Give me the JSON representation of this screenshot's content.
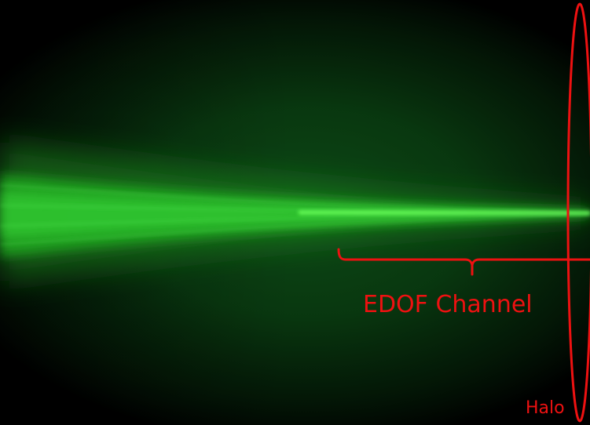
{
  "image": {
    "background_color": "#000000",
    "glow_color": "#2ad62a",
    "haze_color": "#0a3a12",
    "annotation_color": "#ee1111"
  },
  "annotations": {
    "channel_label": "EDOF Channel",
    "halo_label": "Halo"
  }
}
